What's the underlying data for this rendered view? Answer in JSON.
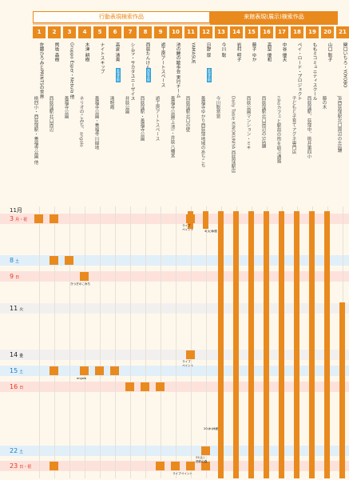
{
  "header": {
    "left_title": "行動表現検索作品",
    "right_title": "来館表現(展示)検索作品"
  },
  "columns": [
    {
      "num": "1",
      "title": "佐藤ひろみとPRINTSの世界",
      "venue": "桃四小・西荻窪駅・善福寺公園 他",
      "badge": ""
    },
    {
      "num": "2",
      "title": "熊坂 森樹",
      "venue": "西荻窪駅北口周辺",
      "badge": ""
    },
    {
      "num": "3",
      "title": "Gruppo Esper・Nebula 他",
      "venue": "善福寺公園",
      "badge": ""
    },
    {
      "num": "4",
      "title": "木津 耕樹",
      "venue": "ネリオのこみち、angolo",
      "badge": ""
    },
    {
      "num": "5",
      "title": "ナイトスキップ",
      "venue": "善福寺公園・善福寺川緑地",
      "badge": ""
    },
    {
      "num": "6",
      "title": "高倉 清貴",
      "venue": "清明庵",
      "badge": "荻窪芸術"
    },
    {
      "num": "7",
      "title": "シムラ・サカタユニーザイス",
      "venue": "井荻公園",
      "badge": ""
    },
    {
      "num": "8",
      "title": "西荻たんけん隊",
      "venue": "西荻窪駅・善福寺公園",
      "badge": "西荻芸術"
    },
    {
      "num": "9",
      "title": "遊工房アートスペース",
      "venue": "遊工房アートスペース",
      "badge": ""
    },
    {
      "num": "10",
      "title": "池の鯉の散歩会 実行チーム",
      "venue": "善福寺公園(上池)・井荻八幡宮",
      "badge": ""
    },
    {
      "num": "11",
      "title": "YAMASUE",
      "venue": "西荻窪駅北口の壁",
      "badge": ""
    },
    {
      "num": "12",
      "title": "日野 厚",
      "venue": "善福寺ゆかり西荻窪地域のあちこち",
      "badge": "荻窪芸術"
    },
    {
      "num": "13",
      "title": "今川 聡",
      "venue": "今川聡窓窓",
      "badge": ""
    },
    {
      "num": "14",
      "title": "岩村 明子",
      "venue": "Daily Table KINOKUNIYA 西荻窪駅店",
      "badge": ""
    },
    {
      "num": "15",
      "title": "藤子 ゆか",
      "venue": "西荻公園マンション・ミキ",
      "badge": ""
    },
    {
      "num": "16",
      "title": "高梨 優和",
      "venue": "西荻窪駅北口周辺の5店舗",
      "badge": ""
    },
    {
      "num": "17",
      "title": "中谷 優夫",
      "venue": "nikoカフェと駅前の街を結ぶ通路",
      "badge": ""
    },
    {
      "num": "18",
      "title": "ペイ・ロード・プロジェクト",
      "venue": "子どもと子育てアグネ専門店",
      "badge": ""
    },
    {
      "num": "19",
      "title": "ももミコミュニティスクール",
      "venue": "西荻窪駅、荻窪中、桃井第四小",
      "badge": ""
    },
    {
      "num": "20",
      "title": "山口 聡子",
      "venue": "藤の木",
      "badge": ""
    },
    {
      "num": "21",
      "title": "関口いちろ・YOYOBO",
      "venue": "JR西荻窪駅北口周辺の4店舗",
      "badge": ""
    }
  ],
  "month": "11月",
  "rows": [
    {
      "label": "3",
      "sub": "月・祝",
      "style": "red"
    },
    {
      "label": "8",
      "sub": "土",
      "style": "blue"
    },
    {
      "label": "9",
      "sub": "日",
      "style": "red"
    },
    {
      "label": "11",
      "sub": "火",
      "style": "plain"
    },
    {
      "label": "14",
      "sub": "金",
      "style": "plain"
    },
    {
      "label": "15",
      "sub": "土",
      "style": "blue"
    },
    {
      "label": "16",
      "sub": "日",
      "style": "red"
    },
    {
      "label": "22",
      "sub": "土",
      "style": "blue"
    },
    {
      "label": "23",
      "sub": "日・祝",
      "style": "red"
    }
  ],
  "notes": {
    "live_event_1": "ライブ\nペイント",
    "apr30": "4(火)休館",
    "kitakami_nozomi": "きつぎのこみち",
    "angolo": "angolo",
    "live_event_2": "ライブ\nペイント",
    "closed_20": "20(木)休館",
    "closed_22": "22(土)\n西荻の森",
    "live_event_3": "ライブペイント"
  },
  "colors": {
    "accent": "#e98a1e",
    "red_row": "#fde2dc",
    "blue_row": "#e1eff9",
    "background": "#fef8ec"
  }
}
